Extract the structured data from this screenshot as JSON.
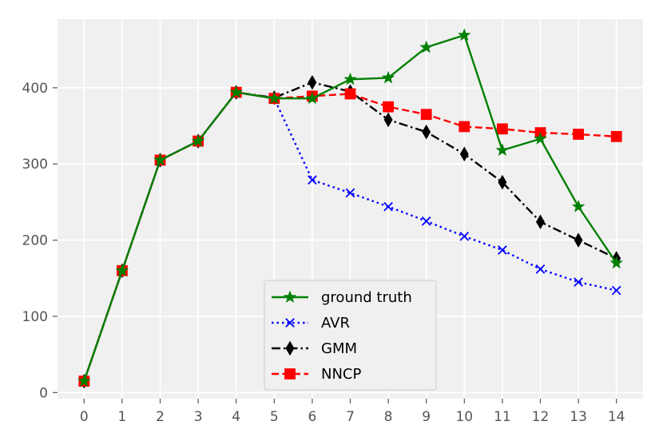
{
  "chart_data": {
    "type": "line",
    "x": [
      0,
      1,
      2,
      3,
      4,
      5,
      6,
      7,
      8,
      9,
      10,
      11,
      12,
      13,
      14
    ],
    "xlim": [
      -0.7,
      14.7
    ],
    "ylim": [
      -8,
      490
    ],
    "xticks": [
      "0",
      "1",
      "2",
      "3",
      "4",
      "5",
      "6",
      "7",
      "8",
      "9",
      "10",
      "11",
      "12",
      "13",
      "14"
    ],
    "yticks": [
      0,
      100,
      200,
      300,
      400
    ],
    "grid": true,
    "legend_position": "bottom-center",
    "series": [
      {
        "name": "ground truth",
        "color": "#008000",
        "line_style": "solid",
        "marker": "star",
        "values": [
          15,
          160,
          305,
          330,
          394,
          386,
          386,
          411,
          413,
          453,
          469,
          318,
          333,
          244,
          170
        ]
      },
      {
        "name": "AVR",
        "color": "#0000ff",
        "line_style": "dotted",
        "marker": "x",
        "values": [
          15,
          160,
          305,
          330,
          394,
          386,
          279,
          262,
          244,
          225,
          205,
          187,
          162,
          145,
          134
        ]
      },
      {
        "name": "GMM",
        "color": "#000000",
        "line_style": "dashdot",
        "marker": "thin-diamond",
        "values": [
          15,
          160,
          305,
          330,
          394,
          387,
          407,
          395,
          358,
          342,
          313,
          276,
          224,
          200,
          176
        ]
      },
      {
        "name": "NNCP",
        "color": "#ff0000",
        "line_style": "dashed",
        "marker": "square",
        "values": [
          15,
          160,
          305,
          330,
          394,
          386,
          389,
          392,
          375,
          365,
          349,
          346,
          341,
          339,
          336
        ]
      }
    ]
  }
}
